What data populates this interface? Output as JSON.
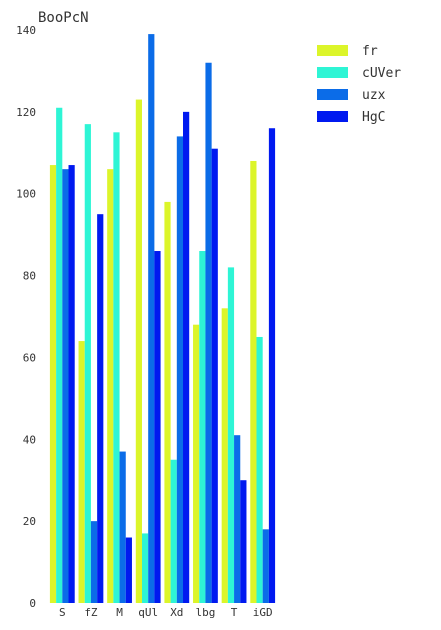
{
  "chart_data": {
    "type": "bar",
    "title": "BooPcN",
    "xlabel": "",
    "ylabel": "",
    "categories": [
      "S",
      "fZ",
      "M",
      "qUl",
      "Xd",
      "lbg",
      "T",
      "iGD"
    ],
    "ylim": [
      0,
      140
    ],
    "yticks": [
      0,
      20,
      40,
      60,
      80,
      100,
      120,
      140
    ],
    "grid": false,
    "legend_position": "top-right",
    "series": [
      {
        "name": "fr",
        "color": "#dcf52a",
        "values": [
          107,
          64,
          106,
          123,
          98,
          68,
          72,
          108
        ]
      },
      {
        "name": "cUVer",
        "color": "#2ef5d5",
        "values": [
          121,
          117,
          115,
          17,
          35,
          86,
          82,
          65
        ]
      },
      {
        "name": "uzx",
        "color": "#0b6ce8",
        "values": [
          106,
          20,
          37,
          139,
          114,
          132,
          41,
          18
        ]
      },
      {
        "name": "HgC",
        "color": "#0019f0",
        "values": [
          107,
          95,
          16,
          86,
          120,
          111,
          30,
          116
        ]
      }
    ]
  }
}
